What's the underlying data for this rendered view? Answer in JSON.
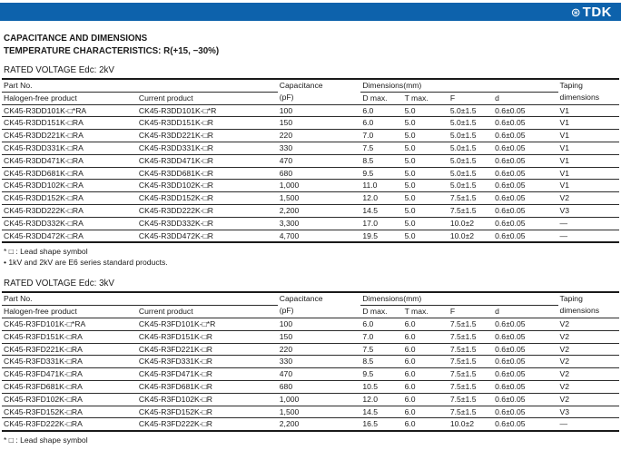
{
  "brand": {
    "name": "TDK",
    "mark_glyph": "⊛",
    "bar_color": "#0d62ac"
  },
  "titles": {
    "heading1": "CAPACITANCE AND DIMENSIONS",
    "heading2": "TEMPERATURE CHARACTERISTICS: R(+15, −30%)"
  },
  "table_header": {
    "part_no": "Part No.",
    "halogen_free": "Halogen-free product",
    "current": "Current product",
    "capacitance": "Capacitance",
    "capacitance_unit": "(pF)",
    "dimensions": "Dimensions(mm)",
    "d_max": "D max.",
    "t_max": "T max.",
    "f": "F",
    "d": "d",
    "taping": "Taping",
    "taping2": "dimensions"
  },
  "tables": [
    {
      "section_title": "RATED VOLTAGE Edc: 2kV",
      "rows": [
        [
          "CK45-R3DD101K-□*RA",
          "CK45-R3DD101K-□*R",
          "100",
          "6.0",
          "5.0",
          "5.0±1.5",
          "0.6±0.05",
          "V1"
        ],
        [
          "CK45-R3DD151K-□RA",
          "CK45-R3DD151K-□R",
          "150",
          "6.0",
          "5.0",
          "5.0±1.5",
          "0.6±0.05",
          "V1"
        ],
        [
          "CK45-R3DD221K-□RA",
          "CK45-R3DD221K-□R",
          "220",
          "7.0",
          "5.0",
          "5.0±1.5",
          "0.6±0.05",
          "V1"
        ],
        [
          "CK45-R3DD331K-□RA",
          "CK45-R3DD331K-□R",
          "330",
          "7.5",
          "5.0",
          "5.0±1.5",
          "0.6±0.05",
          "V1"
        ],
        [
          "CK45-R3DD471K-□RA",
          "CK45-R3DD471K-□R",
          "470",
          "8.5",
          "5.0",
          "5.0±1.5",
          "0.6±0.05",
          "V1"
        ],
        [
          "CK45-R3DD681K-□RA",
          "CK45-R3DD681K-□R",
          "680",
          "9.5",
          "5.0",
          "5.0±1.5",
          "0.6±0.05",
          "V1"
        ],
        [
          "CK45-R3DD102K-□RA",
          "CK45-R3DD102K-□R",
          "1,000",
          "11.0",
          "5.0",
          "5.0±1.5",
          "0.6±0.05",
          "V1"
        ],
        [
          "CK45-R3DD152K-□RA",
          "CK45-R3DD152K-□R",
          "1,500",
          "12.0",
          "5.0",
          "7.5±1.5",
          "0.6±0.05",
          "V2"
        ],
        [
          "CK45-R3DD222K-□RA",
          "CK45-R3DD222K-□R",
          "2,200",
          "14.5",
          "5.0",
          "7.5±1.5",
          "0.6±0.05",
          "V3"
        ],
        [
          "CK45-R3DD332K-□RA",
          "CK45-R3DD332K-□R",
          "3,300",
          "17.0",
          "5.0",
          "10.0±2",
          "0.6±0.05",
          "—"
        ],
        [
          "CK45-R3DD472K-□RA",
          "CK45-R3DD472K-□R",
          "4,700",
          "19.5",
          "5.0",
          "10.0±2",
          "0.6±0.05",
          "—"
        ]
      ],
      "notes": [
        "* □ : Lead shape symbol",
        "• 1kV and 2kV are E6 series standard products."
      ]
    },
    {
      "section_title": "RATED VOLTAGE Edc: 3kV",
      "rows": [
        [
          "CK45-R3FD101K-□*RA",
          "CK45-R3FD101K-□*R",
          "100",
          "6.0",
          "6.0",
          "7.5±1.5",
          "0.6±0.05",
          "V2"
        ],
        [
          "CK45-R3FD151K-□RA",
          "CK45-R3FD151K-□R",
          "150",
          "7.0",
          "6.0",
          "7.5±1.5",
          "0.6±0.05",
          "V2"
        ],
        [
          "CK45-R3FD221K-□RA",
          "CK45-R3FD221K-□R",
          "220",
          "7.5",
          "6.0",
          "7.5±1.5",
          "0.6±0.05",
          "V2"
        ],
        [
          "CK45-R3FD331K-□RA",
          "CK45-R3FD331K-□R",
          "330",
          "8.5",
          "6.0",
          "7.5±1.5",
          "0.6±0.05",
          "V2"
        ],
        [
          "CK45-R3FD471K-□RA",
          "CK45-R3FD471K-□R",
          "470",
          "9.5",
          "6.0",
          "7.5±1.5",
          "0.6±0.05",
          "V2"
        ],
        [
          "CK45-R3FD681K-□RA",
          "CK45-R3FD681K-□R",
          "680",
          "10.5",
          "6.0",
          "7.5±1.5",
          "0.6±0.05",
          "V2"
        ],
        [
          "CK45-R3FD102K-□RA",
          "CK45-R3FD102K-□R",
          "1,000",
          "12.0",
          "6.0",
          "7.5±1.5",
          "0.6±0.05",
          "V2"
        ],
        [
          "CK45-R3FD152K-□RA",
          "CK45-R3FD152K-□R",
          "1,500",
          "14.5",
          "6.0",
          "7.5±1.5",
          "0.6±0.05",
          "V3"
        ],
        [
          "CK45-R3FD222K-□RA",
          "CK45-R3FD222K-□R",
          "2,200",
          "16.5",
          "6.0",
          "10.0±2",
          "0.6±0.05",
          "—"
        ]
      ],
      "notes": [
        "* □ : Lead shape symbol"
      ]
    }
  ],
  "cell_names": [
    "halogen-free-product",
    "current-product",
    "capacitance",
    "d-max",
    "t-max",
    "f",
    "d",
    "taping-dimensions"
  ]
}
